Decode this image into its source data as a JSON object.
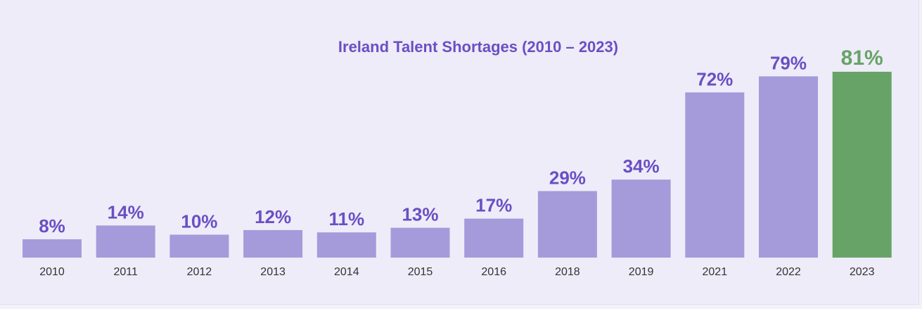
{
  "chart_data": {
    "type": "bar",
    "title": "Ireland Talent Shortages (2010 – 2023)",
    "categories": [
      "2010",
      "2011",
      "2012",
      "2013",
      "2014",
      "2015",
      "2016",
      "2018",
      "2019",
      "2021",
      "2022",
      "2023"
    ],
    "values": [
      8,
      14,
      10,
      12,
      11,
      13,
      17,
      29,
      34,
      72,
      79,
      81
    ],
    "value_labels": [
      "8%",
      "14%",
      "10%",
      "12%",
      "11%",
      "13%",
      "17%",
      "29%",
      "34%",
      "72%",
      "79%",
      "81%"
    ],
    "ylim": [
      0,
      100
    ],
    "highlight_index": 11,
    "colors": {
      "bar": "#a59bdb",
      "highlight_bar": "#67a367",
      "label": "#6a4fc4",
      "highlight_label": "#67a367",
      "title": "#6a4fc4",
      "category": "#333333"
    }
  }
}
